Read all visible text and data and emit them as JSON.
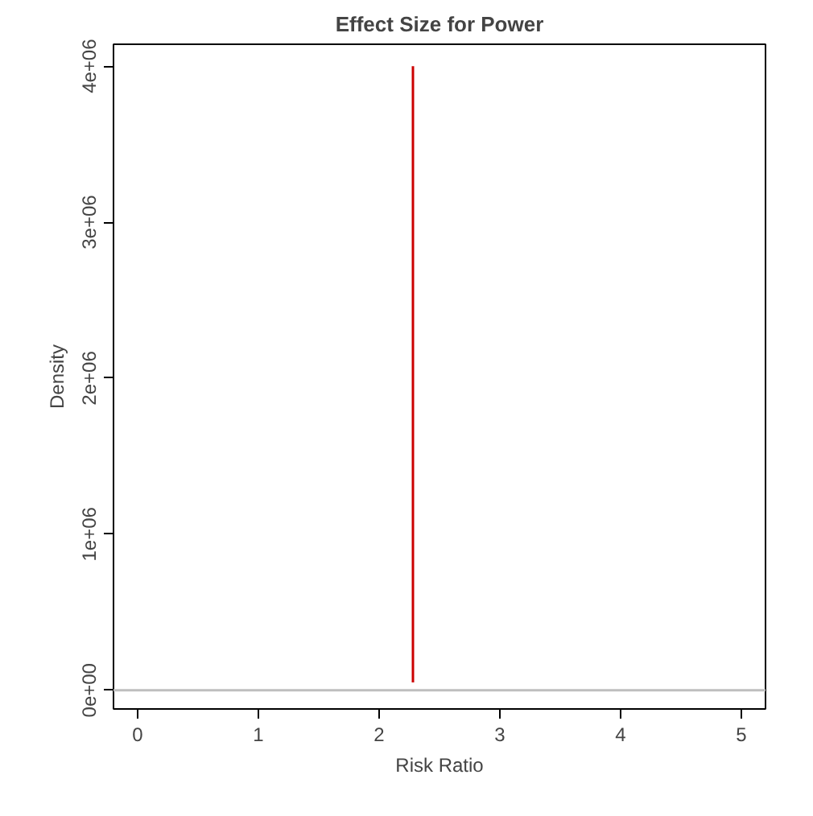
{
  "chart_data": {
    "type": "line",
    "title": "Effect Size for Power",
    "xlabel": "Risk Ratio",
    "ylabel": "Density",
    "x": [
      2.28,
      2.28
    ],
    "series": [
      {
        "color": "#cc0000",
        "values": [
          50000,
          4000000
        ]
      }
    ],
    "xlim": [
      -0.2,
      5.2
    ],
    "xticks": [
      0,
      1,
      2,
      3,
      4,
      5
    ],
    "ylim": [
      -120000,
      4140000
    ],
    "yticks": [
      {
        "value": 0,
        "label": "0e+00"
      },
      {
        "value": 1000000,
        "label": "1e+06"
      },
      {
        "value": 2000000,
        "label": "2e+06"
      },
      {
        "value": 3000000,
        "label": "3e+06"
      },
      {
        "value": 4000000,
        "label": "4e+06"
      }
    ],
    "ref_lines": [
      {
        "axis": "y",
        "value": 0,
        "color": "#bebebe"
      }
    ],
    "grid": false
  }
}
